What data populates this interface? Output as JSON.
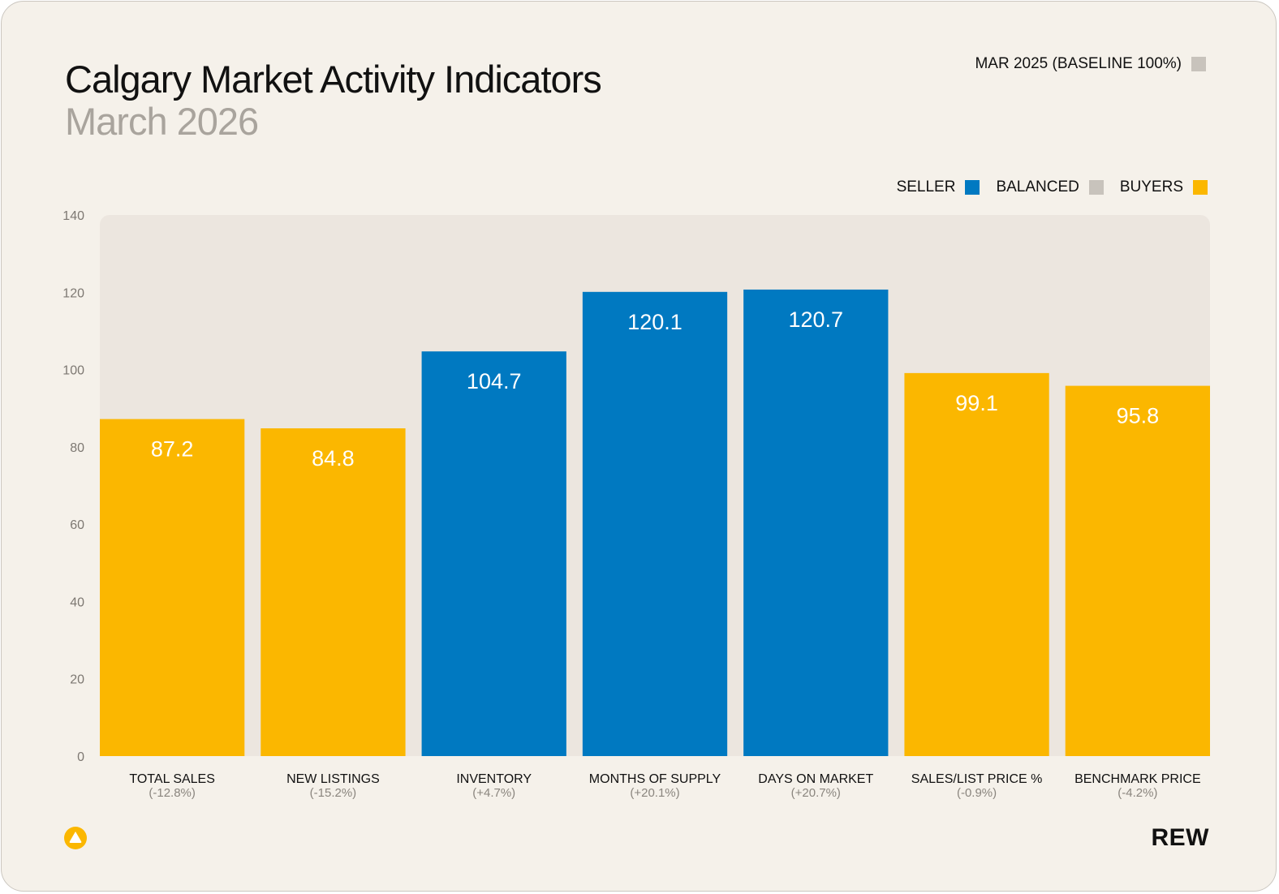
{
  "header": {
    "title": "Calgary Market Activity Indicators",
    "subtitle": "March 2026"
  },
  "baseline_legend": {
    "label": "MAR 2025 (BASELINE 100%)",
    "color": "#c8c3bc"
  },
  "legend": [
    {
      "label": "SELLER",
      "color": "#0079c1"
    },
    {
      "label": "BALANCED",
      "color": "#c8c3bc"
    },
    {
      "label": "BUYERS",
      "color": "#fbb700"
    }
  ],
  "brand": {
    "name": "REW",
    "logo_icon": "rew-logo-icon"
  },
  "colors": {
    "background": "#f5f1ea",
    "plot_background": "#ece6df",
    "seller": "#0079c1",
    "buyers": "#fbb700",
    "balanced": "#c8c3bc"
  },
  "chart_data": {
    "type": "bar",
    "title": "Calgary Market Activity Indicators",
    "subtitle": "March 2026",
    "ylim": [
      0,
      140
    ],
    "yticks": [
      0,
      20,
      40,
      60,
      80,
      100,
      120,
      140
    ],
    "grid": false,
    "categories": [
      "TOTAL SALES",
      "NEW LISTINGS",
      "INVENTORY",
      "MONTHS OF SUPPLY",
      "DAYS ON MARKET",
      "SALES/LIST PRICE %",
      "BENCHMARK PRICE"
    ],
    "changes": [
      "(-12.8%)",
      "(-15.2%)",
      "(+4.7%)",
      "(+20.1%)",
      "(+20.7%)",
      "(-0.9%)",
      "(-4.2%)"
    ],
    "values": [
      87.2,
      84.8,
      104.7,
      120.1,
      120.7,
      99.1,
      95.8
    ],
    "value_labels": [
      "87.2",
      "84.8",
      "104.7",
      "120.1",
      "120.7",
      "99.1",
      "95.8"
    ],
    "market": [
      "BUYERS",
      "BUYERS",
      "SELLER",
      "SELLER",
      "SELLER",
      "BUYERS",
      "BUYERS"
    ]
  }
}
